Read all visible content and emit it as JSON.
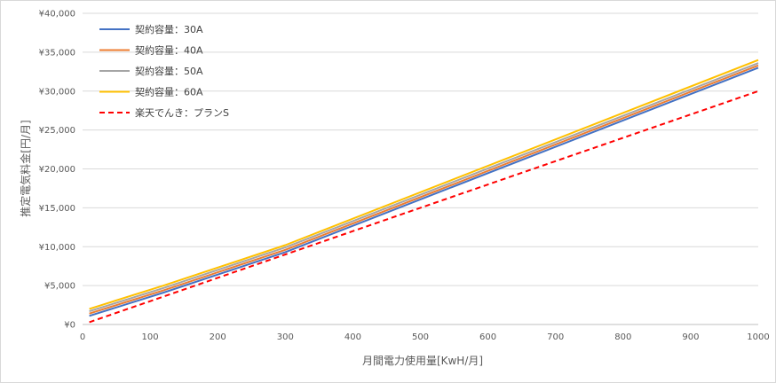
{
  "chart_data": {
    "type": "line",
    "xlabel": "月間電力使用量[KwH/月]",
    "ylabel": "推定電気料金[円/月]",
    "xlim": [
      0,
      1000
    ],
    "ylim": [
      0,
      40000
    ],
    "x_ticks": [
      "0",
      "100",
      "200",
      "300",
      "400",
      "500",
      "600",
      "700",
      "800",
      "900",
      "1000"
    ],
    "y_ticks": [
      "¥0",
      "¥5,000",
      "¥10,000",
      "¥15,000",
      "¥20,000",
      "¥25,000",
      "¥30,000",
      "¥35,000",
      "¥40,000"
    ],
    "grid": true,
    "legend_position": "top-left",
    "series": [
      {
        "name": "契約容量：30A",
        "color": "#4472c4",
        "dash": false,
        "x": [
          10,
          120,
          300,
          1000
        ],
        "y": [
          1100,
          4100,
          9300,
          33000
        ]
      },
      {
        "name": "契約容量：40A",
        "color": "#ed7d31",
        "dash": false,
        "x": [
          10,
          120,
          300,
          1000
        ],
        "y": [
          1400,
          4400,
          9600,
          33300
        ]
      },
      {
        "name": "契約容量：50A",
        "color": "#a5a5a5",
        "dash": false,
        "x": [
          10,
          120,
          300,
          1000
        ],
        "y": [
          1700,
          4700,
          9900,
          33600
        ]
      },
      {
        "name": "契約容量：60A",
        "color": "#ffc000",
        "dash": false,
        "x": [
          10,
          120,
          300,
          1000
        ],
        "y": [
          2000,
          5000,
          10200,
          34000
        ]
      },
      {
        "name": "楽天でんき：プランS",
        "color": "#ff0000",
        "dash": true,
        "x": [
          10,
          1000
        ],
        "y": [
          300,
          30000
        ]
      }
    ]
  }
}
